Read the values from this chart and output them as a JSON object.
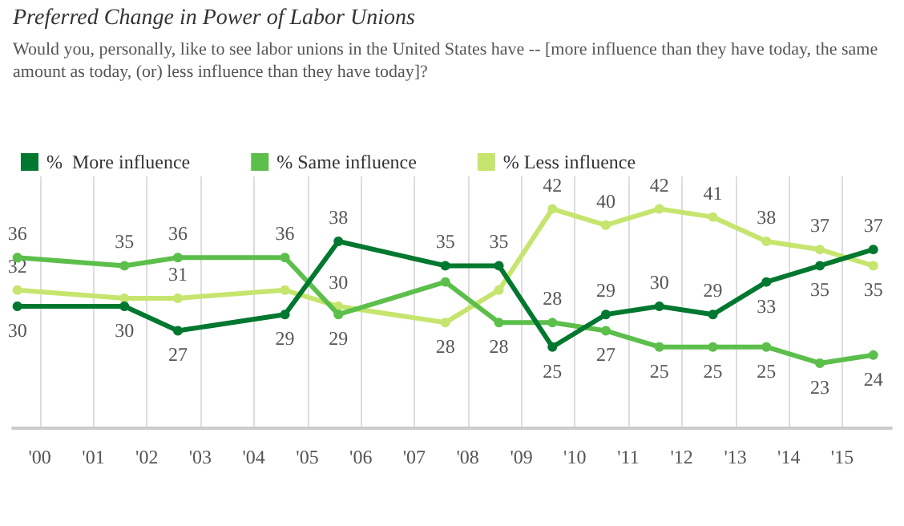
{
  "chart_data": {
    "type": "line",
    "title": "Preferred Change in Power of Labor Unions",
    "subtitle": "Would you, personally, like to see labor unions in the United States have -- [more influence than they have today, the same amount as today, (or) less influence than they have today]?",
    "x": [
      "1999-08",
      "2001-08",
      "2002-08",
      "2004-08",
      "2005-08",
      "2007-08",
      "2008-08",
      "2009-08",
      "2010-08",
      "2011-08",
      "2012-08",
      "2013-08",
      "2014-08",
      "2015-08"
    ],
    "series": [
      {
        "name": "%  More influence",
        "color": "#00782f",
        "values": [
          30,
          30,
          27,
          29,
          38,
          35,
          35,
          25,
          29,
          30,
          29,
          33,
          35,
          37
        ]
      },
      {
        "name": "% Same influence",
        "color": "#5cbf4b",
        "values": [
          36,
          35,
          36,
          36,
          29,
          33,
          28,
          28,
          27,
          25,
          25,
          25,
          23,
          24
        ],
        "value_labels": [
          "36",
          "35",
          "36",
          "36",
          "29",
          null,
          "28",
          "28",
          "27",
          "25",
          "25",
          "25",
          "23",
          "24"
        ]
      },
      {
        "name": "% Less influence",
        "color": "#c6e56e",
        "values": [
          32,
          31,
          31,
          32,
          30,
          28,
          32,
          42,
          40,
          42,
          41,
          38,
          37,
          35
        ],
        "value_labels": [
          "32",
          null,
          "31",
          null,
          "30",
          "28",
          null,
          "42",
          "40",
          "42",
          "41",
          "38",
          "37",
          "35"
        ]
      }
    ],
    "data_labels": true,
    "xlim": [
      "1999-07",
      "2015-12"
    ],
    "xticks": [
      {
        "value": "2000",
        "label": "'00"
      },
      {
        "value": "2001",
        "label": "'01"
      },
      {
        "value": "2002",
        "label": "'02"
      },
      {
        "value": "2003",
        "label": "'03"
      },
      {
        "value": "2004",
        "label": "'04"
      },
      {
        "value": "2005",
        "label": "'05"
      },
      {
        "value": "2006",
        "label": "'06"
      },
      {
        "value": "2007",
        "label": "'07"
      },
      {
        "value": "2008",
        "label": "'08"
      },
      {
        "value": "2009",
        "label": "'09"
      },
      {
        "value": "2010",
        "label": "'10"
      },
      {
        "value": "2011",
        "label": "'11"
      },
      {
        "value": "2012",
        "label": "'12"
      },
      {
        "value": "2013",
        "label": "'13"
      },
      {
        "value": "2014",
        "label": "'14"
      },
      {
        "value": "2015",
        "label": "'15"
      }
    ],
    "ylim": [
      15,
      46
    ],
    "tick_labels": "x",
    "grid": "x",
    "legend": "top left",
    "marker": "circle",
    "line_style": "solid"
  }
}
